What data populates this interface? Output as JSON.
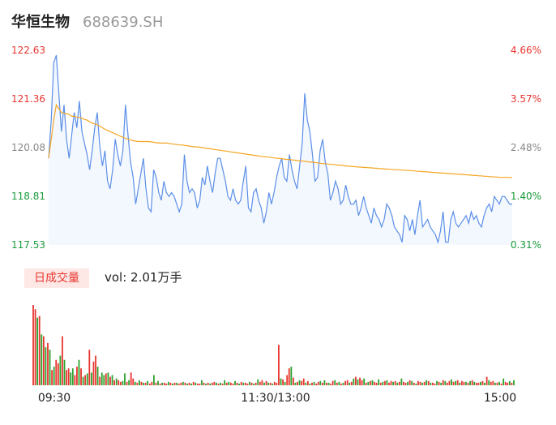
{
  "header": {
    "name": "华恒生物",
    "code": "688639.SH"
  },
  "price_axis": {
    "labels": [
      "122.63",
      "121.36",
      "120.08",
      "118.81",
      "117.53"
    ],
    "pct_labels": [
      "4.66%",
      "3.57%",
      "2.48%",
      "1.40%",
      "0.31%"
    ],
    "colors": {
      "up": "#e8352f",
      "neutral": "#888888",
      "down": "#1a9b3c"
    }
  },
  "volume": {
    "badge": "日成交量",
    "label": "vol: 2.01万手"
  },
  "time_axis": [
    "09:30",
    "11:30/13:00",
    "15:00"
  ],
  "colors": {
    "price_line": "#5b8fe8",
    "avg_line": "#f5a623",
    "fill": "#f3f7fe",
    "vol_up": "#e8352f",
    "vol_down": "#2ca02c"
  },
  "chart_data": {
    "type": "line",
    "ylim": [
      117.53,
      122.63
    ],
    "xlabels": [
      "09:30",
      "11:30/13:00",
      "15:00"
    ],
    "series": [
      {
        "values": [
          119.8,
          120.8,
          122.3,
          122.5,
          121.5,
          120.5,
          121.2,
          120.3,
          119.8,
          120.4,
          121.0,
          120.6,
          121.3,
          120.5,
          120.2,
          119.9,
          119.5,
          120.0,
          120.6,
          121.0,
          120.1,
          119.6,
          120.0,
          119.2,
          119.0,
          119.5,
          120.3,
          119.9,
          119.6,
          120.0,
          121.2,
          120.4,
          119.7,
          119.3,
          118.6,
          119.0,
          119.4,
          119.8,
          119.0,
          118.5,
          118.4,
          119.5,
          119.3,
          118.9,
          118.7,
          119.2,
          118.9,
          118.8,
          118.9,
          118.8,
          118.6,
          118.4,
          118.6,
          119.9,
          119.2,
          118.9,
          119.0,
          118.9,
          118.5,
          118.7,
          119.3,
          119.1,
          119.6,
          119.2,
          118.9,
          119.4,
          119.8,
          119.8,
          119.5,
          119.2,
          118.8,
          118.7,
          119.0,
          118.7,
          118.6,
          118.7,
          119.2,
          119.6,
          118.5,
          118.4,
          118.9,
          119.0,
          118.7,
          118.5,
          118.1,
          118.4,
          118.9,
          118.6,
          118.9,
          119.3,
          119.6,
          119.8,
          119.3,
          119.2,
          119.9,
          119.5,
          119.2,
          119.0,
          119.6,
          120.2,
          121.5,
          120.8,
          120.5,
          119.9,
          119.2,
          119.3,
          120.0,
          120.3,
          119.7,
          119.4,
          118.7,
          118.9,
          119.2,
          119.0,
          118.6,
          118.7,
          119.1,
          118.8,
          118.6,
          118.6,
          118.7,
          118.3,
          118.5,
          118.8,
          118.5,
          118.3,
          118.1,
          118.5,
          118.3,
          118.2,
          118.0,
          118.2,
          118.6,
          118.5,
          118.3,
          118.0,
          117.9,
          117.8,
          117.6,
          118.3,
          118.2,
          117.9,
          118.2,
          117.8,
          118.3,
          118.7,
          118.0,
          118.1,
          118.2,
          118.0,
          117.9,
          117.8,
          117.6,
          117.9,
          118.4,
          117.6,
          117.6,
          118.2,
          118.4,
          118.1,
          118.0,
          118.1,
          118.2,
          118.3,
          118.1,
          118.4,
          118.2,
          118.3,
          118.1,
          118.0,
          118.3,
          118.5,
          118.6,
          118.4,
          118.8,
          118.7,
          118.6,
          118.8,
          118.8,
          118.7,
          118.6,
          118.6
        ],
        "color": "#5b8fe8"
      },
      {
        "values": [
          119.8,
          120.3,
          120.8,
          121.2,
          121.1,
          121.0,
          120.98,
          120.97,
          120.95,
          120.9,
          120.9,
          120.88,
          120.87,
          120.85,
          120.82,
          120.8,
          120.76,
          120.72,
          120.7,
          120.68,
          120.64,
          120.6,
          120.56,
          120.53,
          120.5,
          120.47,
          120.44,
          120.41,
          120.38,
          120.35,
          120.32,
          120.3,
          120.28,
          120.26,
          120.25,
          120.24,
          120.24,
          120.24,
          120.24,
          120.24,
          120.23,
          120.22,
          120.21,
          120.2,
          120.2,
          120.2,
          120.2,
          120.19,
          120.18,
          120.17,
          120.16,
          120.15,
          120.15,
          120.14,
          120.13,
          120.12,
          120.11,
          120.1,
          120.1,
          120.09,
          120.08,
          120.07,
          120.06,
          120.05,
          120.04,
          120.03,
          120.02,
          120.01,
          120.0,
          119.99,
          119.98,
          119.97,
          119.96,
          119.95,
          119.94,
          119.93,
          119.92,
          119.91,
          119.9,
          119.89,
          119.88,
          119.87,
          119.86,
          119.85,
          119.84,
          119.84,
          119.83,
          119.82,
          119.81,
          119.8,
          119.8,
          119.79,
          119.78,
          119.77,
          119.77,
          119.76,
          119.75,
          119.74,
          119.74,
          119.73,
          119.72,
          119.71,
          119.7,
          119.7,
          119.69,
          119.68,
          119.67,
          119.66,
          119.66,
          119.65,
          119.64,
          119.64,
          119.63,
          119.62,
          119.62,
          119.61,
          119.6,
          119.6,
          119.59,
          119.58,
          119.58,
          119.57,
          119.57,
          119.56,
          119.56,
          119.55,
          119.55,
          119.54,
          119.54,
          119.53,
          119.53,
          119.52,
          119.52,
          119.51,
          119.51,
          119.5,
          119.5,
          119.5,
          119.49,
          119.49,
          119.48,
          119.48,
          119.47,
          119.47,
          119.46,
          119.46,
          119.45,
          119.45,
          119.44,
          119.44,
          119.43,
          119.43,
          119.42,
          119.42,
          119.41,
          119.41,
          119.4,
          119.4,
          119.39,
          119.39,
          119.38,
          119.38,
          119.37,
          119.37,
          119.36,
          119.36,
          119.35,
          119.35,
          119.34,
          119.34,
          119.33,
          119.33,
          119.32,
          119.32,
          119.31,
          119.31,
          119.3,
          119.3,
          119.3,
          119.3,
          119.3,
          119.29
        ],
        "color": "#f5a623"
      }
    ],
    "volume_values": [
      95,
      90,
      80,
      82,
      60,
      58,
      45,
      50,
      42,
      18,
      22,
      30,
      26,
      35,
      58,
      30,
      18,
      20,
      15,
      20,
      12,
      22,
      30,
      20,
      10,
      12,
      14,
      42,
      15,
      28,
      35,
      22,
      10,
      15,
      12,
      14,
      15,
      10,
      12,
      6,
      8,
      6,
      4,
      5,
      14,
      4,
      6,
      15,
      8,
      4,
      3,
      6,
      4,
      3,
      3,
      5,
      2,
      4,
      12,
      3,
      5,
      2,
      3,
      3,
      2,
      4,
      3,
      2,
      3,
      3,
      2,
      3,
      4,
      3,
      2,
      3,
      2,
      4,
      3,
      2,
      2,
      6,
      3,
      2,
      3,
      2,
      3,
      4,
      3,
      2,
      3,
      2,
      6,
      3,
      4,
      3,
      2,
      5,
      3,
      2,
      4,
      3,
      3,
      2,
      4,
      3,
      2,
      3,
      7,
      4,
      6,
      3,
      5,
      3,
      3,
      2,
      4,
      3,
      48,
      8,
      7,
      4,
      12,
      20,
      22,
      9,
      3,
      4,
      6,
      5,
      8,
      3,
      5,
      2,
      3,
      4,
      2,
      4,
      5,
      3,
      6,
      3,
      3,
      2,
      5,
      6,
      3,
      4,
      2,
      3,
      5,
      6,
      3,
      4,
      8,
      10,
      7,
      9,
      6,
      8,
      3,
      4,
      5,
      6,
      4,
      3,
      7,
      3,
      4,
      5,
      6,
      3,
      5,
      4,
      5,
      3,
      4,
      8,
      4,
      3,
      4,
      6,
      5,
      3,
      2,
      5,
      4,
      3,
      4,
      6,
      5,
      3,
      3,
      2,
      5,
      4,
      3,
      6,
      5,
      3,
      5,
      7,
      4,
      5,
      6,
      3,
      5,
      4,
      4,
      3,
      5,
      6,
      4,
      3,
      3,
      4,
      5,
      3,
      10,
      6,
      4,
      5,
      3,
      3,
      4,
      2,
      8,
      4,
      3,
      5,
      3,
      6
    ],
    "volume_up": [
      1,
      1,
      0,
      1,
      0,
      1,
      0,
      1,
      0,
      1,
      0,
      1,
      1,
      0,
      1,
      0,
      1,
      1,
      0,
      0,
      1,
      1,
      0,
      1,
      0,
      1,
      0,
      1,
      0,
      1,
      1,
      0,
      1,
      0,
      0,
      1,
      0,
      1,
      0,
      1,
      0,
      1,
      1,
      0,
      0,
      1,
      0,
      1,
      1,
      0,
      1,
      0,
      1,
      0,
      1,
      0,
      1,
      1,
      0,
      1,
      0,
      1,
      0,
      1,
      1,
      0,
      1,
      0,
      1,
      0,
      1,
      1,
      0,
      1,
      0,
      1,
      0,
      1,
      0,
      1,
      1,
      0,
      1,
      0,
      1,
      0,
      1,
      1,
      0,
      1,
      0,
      1,
      0,
      1,
      0,
      1,
      1,
      0,
      1,
      0,
      1,
      0,
      1,
      1,
      0,
      1,
      0,
      1,
      0,
      1,
      1,
      0,
      1,
      0,
      1,
      0,
      1,
      1,
      1,
      0,
      1,
      0,
      1,
      1,
      0,
      1,
      0,
      1,
      0,
      1,
      1,
      0,
      1,
      0,
      1,
      0,
      1,
      1,
      0,
      1,
      0,
      1,
      0,
      1,
      1,
      0,
      1,
      0,
      1,
      0,
      1,
      1,
      0,
      1,
      0,
      1,
      0,
      1,
      1,
      0,
      1,
      0,
      1,
      0,
      1,
      1,
      0,
      1,
      0,
      1,
      0,
      1,
      1,
      0,
      1,
      0,
      1,
      0,
      1,
      1,
      0,
      1,
      0,
      1,
      0,
      1,
      1,
      0,
      1,
      0,
      1,
      0,
      1,
      1,
      0,
      1,
      0,
      1,
      0,
      1,
      1,
      0,
      1,
      0,
      1,
      0,
      1,
      1,
      0,
      1,
      0,
      1,
      0,
      1,
      1,
      0,
      1,
      0,
      1,
      0,
      1,
      1,
      0,
      1,
      0,
      1,
      0,
      1,
      1,
      0,
      1,
      0,
      0
    ]
  }
}
